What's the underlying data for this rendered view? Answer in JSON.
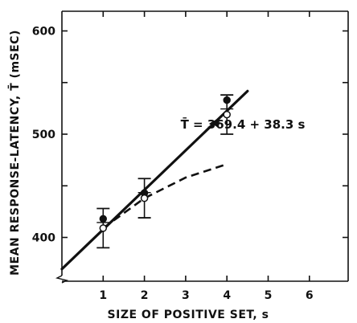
{
  "chart_data": {
    "type": "line",
    "xlabel": "SIZE OF POSITIVE SET, s",
    "ylabel": "MEAN RESPONSE-LATENCY, T̄  (mSEC)",
    "xlim": [
      0,
      7
    ],
    "ylim": [
      360,
      625
    ],
    "x_ticks": [
      1,
      2,
      3,
      4,
      5,
      6
    ],
    "y_ticks": [
      400,
      500,
      600
    ],
    "axis_break": "y",
    "grid": false,
    "series": [
      {
        "name": "",
        "type": "scatter",
        "marker": "filled-circle",
        "x": [
          1,
          2,
          4
        ],
        "y": [
          418,
          443,
          533
        ]
      },
      {
        "name": "",
        "type": "scatter",
        "marker": "open-circle",
        "x": [
          1,
          2,
          4
        ],
        "y": [
          409,
          438,
          519
        ],
        "error": [
          19,
          19,
          19
        ]
      },
      {
        "name": "",
        "type": "dashed-line",
        "x": [
          1,
          2,
          3,
          4
        ],
        "y": [
          409,
          438,
          458,
          471
        ]
      }
    ],
    "fit_line": {
      "intercept": 369.4,
      "slope": 38.3,
      "x_range": [
        0,
        4.5
      ],
      "label": "T̄ = 369.4 + 38.3 s"
    }
  }
}
